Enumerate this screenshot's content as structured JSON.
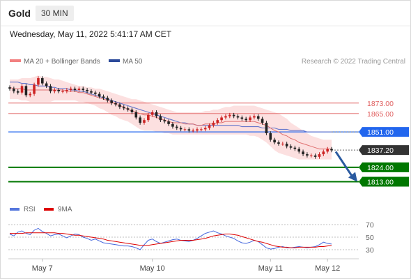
{
  "header": {
    "title": "Gold",
    "timeframe": "30 MIN",
    "timestamp": "Wednesday, May 11, 2022 5:41:17 AM CET"
  },
  "legend": {
    "bollinger_label": "MA 20 + Bollinger Bands",
    "ma50_label": "MA 50",
    "copyright": "Research © 2022 Trading Central",
    "rsi_label": "RSI",
    "rsi_ma_label": "9MA"
  },
  "colors": {
    "candle_up": "#cc2222",
    "candle_down": "#222222",
    "bollinger_fill": "#fbd6d6",
    "ma20": "#e07070",
    "ma50": "#6677cc",
    "resistance": "#e06060",
    "pivot": "#2266ee",
    "support": "#007700",
    "current": "#333333",
    "arrow": "#2a5aa0",
    "rsi": "#4466dd",
    "rsi_ma": "#dd0000"
  },
  "chart_data": [
    {
      "type": "line",
      "instrument": "Gold",
      "interval": "30 MIN",
      "ylim": [
        1800,
        1900
      ],
      "x_ticks": [
        "May 7",
        "May 10",
        "May 11",
        "May 12"
      ],
      "current_price": "1837.20",
      "levels": [
        {
          "value": 1873.0,
          "label": "1873.00",
          "kind": "resistance"
        },
        {
          "value": 1865.0,
          "label": "1865.00",
          "kind": "resistance"
        },
        {
          "value": 1851.0,
          "label": "1851.00",
          "kind": "pivot"
        },
        {
          "value": 1824.0,
          "label": "1824.00",
          "kind": "support"
        },
        {
          "value": 1813.0,
          "label": "1813.00",
          "kind": "support"
        }
      ],
      "series": [
        {
          "name": "Close",
          "values": [
            1884,
            1882,
            1881,
            1886,
            1879,
            1880,
            1887,
            1892,
            1888,
            1886,
            1882,
            1883,
            1882,
            1882,
            1883,
            1884,
            1883,
            1884,
            1883,
            1882,
            1881,
            1880,
            1878,
            1877,
            1875,
            1873,
            1872,
            1870,
            1869,
            1868,
            1866,
            1862,
            1858,
            1860,
            1864,
            1866,
            1863,
            1860,
            1859,
            1857,
            1855,
            1854,
            1853,
            1853,
            1852,
            1852,
            1853,
            1853,
            1854,
            1856,
            1858,
            1860,
            1862,
            1863,
            1864,
            1863,
            1862,
            1861,
            1860,
            1862,
            1863,
            1861,
            1858,
            1850,
            1845,
            1843,
            1842,
            1842,
            1840,
            1839,
            1838,
            1836,
            1834,
            1833,
            1833,
            1832,
            1834,
            1836,
            1838,
            1837
          ]
        },
        {
          "name": "MA 20",
          "values": [
            1885,
            1884,
            1884,
            1884,
            1883,
            1883,
            1883,
            1883,
            1883,
            1883,
            1883,
            1883,
            1883,
            1883,
            1882,
            1882,
            1882,
            1881,
            1881,
            1880,
            1879,
            1878,
            1877,
            1876,
            1875,
            1874,
            1872,
            1871,
            1870,
            1868,
            1867,
            1866,
            1865,
            1864,
            1864,
            1863,
            1862,
            1861,
            1860,
            1859,
            1858,
            1858,
            1858,
            1857,
            1857,
            1857,
            1856,
            1856,
            1857,
            1857,
            1857,
            1858,
            1858,
            1859,
            1859,
            1859,
            1859,
            1859,
            1859,
            1859,
            1859,
            1858,
            1857,
            1856,
            1854,
            1852,
            1851,
            1849,
            1848,
            1846,
            1845,
            1843,
            1842,
            1841,
            1840,
            1839,
            1838,
            1838,
            1838,
            1838
          ]
        },
        {
          "name": "MA 50",
          "values": [
            1889,
            1889,
            1889,
            1888,
            1888,
            1887,
            1887,
            1886,
            1886,
            1886,
            1885,
            1885,
            1884,
            1884,
            1884,
            1883,
            1883,
            1882,
            1882,
            1881,
            1880,
            1879,
            1878,
            1877,
            1876,
            1875,
            1874,
            1873,
            1872,
            1871,
            1870,
            1869,
            1868,
            1867,
            1866,
            1865,
            1864,
            1863,
            1862,
            1861,
            1860,
            1859,
            1858,
            1858,
            1857,
            1857,
            1856,
            1856,
            1856,
            1856,
            1856,
            1856,
            1856,
            1856,
            1856,
            1856,
            1856,
            1855,
            1855,
            1855,
            1855,
            1855,
            1854,
            1854,
            1854,
            1854,
            1853,
            1853,
            1853,
            1852,
            1852,
            1852,
            1852,
            1851,
            1851,
            1851,
            1851,
            1851,
            1851,
            1851
          ]
        },
        {
          "name": "BB Upper",
          "values": [
            1891,
            1891,
            1891,
            1892,
            1892,
            1892,
            1893,
            1894,
            1893,
            1893,
            1892,
            1891,
            1891,
            1890,
            1889,
            1888,
            1887,
            1886,
            1886,
            1885,
            1885,
            1884,
            1884,
            1883,
            1882,
            1881,
            1880,
            1879,
            1878,
            1877,
            1876,
            1876,
            1875,
            1874,
            1873,
            1872,
            1871,
            1870,
            1869,
            1868,
            1867,
            1866,
            1866,
            1866,
            1866,
            1866,
            1866,
            1866,
            1867,
            1867,
            1868,
            1868,
            1869,
            1870,
            1870,
            1871,
            1871,
            1871,
            1871,
            1871,
            1871,
            1870,
            1869,
            1868,
            1867,
            1866,
            1865,
            1863,
            1861,
            1858,
            1856,
            1854,
            1852,
            1850,
            1848,
            1847,
            1846,
            1845,
            1845,
            1845
          ]
        },
        {
          "name": "BB Lower",
          "values": [
            1876,
            1876,
            1876,
            1875,
            1875,
            1874,
            1874,
            1874,
            1874,
            1874,
            1874,
            1875,
            1875,
            1875,
            1875,
            1875,
            1875,
            1874,
            1874,
            1873,
            1872,
            1871,
            1869,
            1868,
            1866,
            1864,
            1863,
            1861,
            1860,
            1859,
            1857,
            1855,
            1853,
            1852,
            1852,
            1852,
            1851,
            1851,
            1850,
            1850,
            1849,
            1849,
            1849,
            1849,
            1849,
            1849,
            1849,
            1849,
            1849,
            1849,
            1849,
            1849,
            1849,
            1849,
            1849,
            1849,
            1849,
            1849,
            1849,
            1848,
            1848,
            1847,
            1845,
            1843,
            1840,
            1837,
            1835,
            1834,
            1833,
            1832,
            1831,
            1830,
            1830,
            1830,
            1830,
            1830,
            1830,
            1830,
            1830,
            1830
          ]
        }
      ]
    },
    {
      "type": "line",
      "name": "RSI",
      "ylim": [
        20,
        80
      ],
      "y_ticks": [
        30,
        50,
        70
      ],
      "series": [
        {
          "name": "RSI",
          "values": [
            55,
            52,
            58,
            60,
            56,
            54,
            61,
            64,
            59,
            56,
            52,
            54,
            55,
            52,
            49,
            52,
            55,
            54,
            50,
            48,
            45,
            47,
            44,
            41,
            40,
            39,
            38,
            37,
            36,
            36,
            35,
            33,
            30,
            38,
            45,
            47,
            43,
            40,
            42,
            44,
            46,
            47,
            45,
            44,
            43,
            45,
            48,
            52,
            56,
            58,
            60,
            57,
            55,
            52,
            50,
            48,
            44,
            41,
            40,
            42,
            45,
            43,
            38,
            33,
            31,
            32,
            34,
            35,
            33,
            33,
            34,
            35,
            34,
            33,
            34,
            35,
            38,
            42,
            40,
            39
          ]
        },
        {
          "name": "9MA",
          "values": [
            56,
            56,
            56,
            56,
            57,
            57,
            57,
            57,
            57,
            57,
            57,
            57,
            56,
            56,
            55,
            54,
            53,
            53,
            52,
            51,
            50,
            49,
            48,
            47,
            45,
            44,
            43,
            42,
            41,
            40,
            39,
            38,
            37,
            37,
            37,
            38,
            39,
            40,
            41,
            42,
            43,
            44,
            45,
            45,
            45,
            45,
            46,
            47,
            48,
            50,
            52,
            53,
            54,
            55,
            55,
            54,
            53,
            51,
            49,
            47,
            45,
            43,
            42,
            40,
            38,
            36,
            35,
            34,
            34,
            33,
            33,
            34,
            34,
            34,
            34,
            34,
            35,
            35,
            36,
            37
          ]
        }
      ]
    }
  ]
}
